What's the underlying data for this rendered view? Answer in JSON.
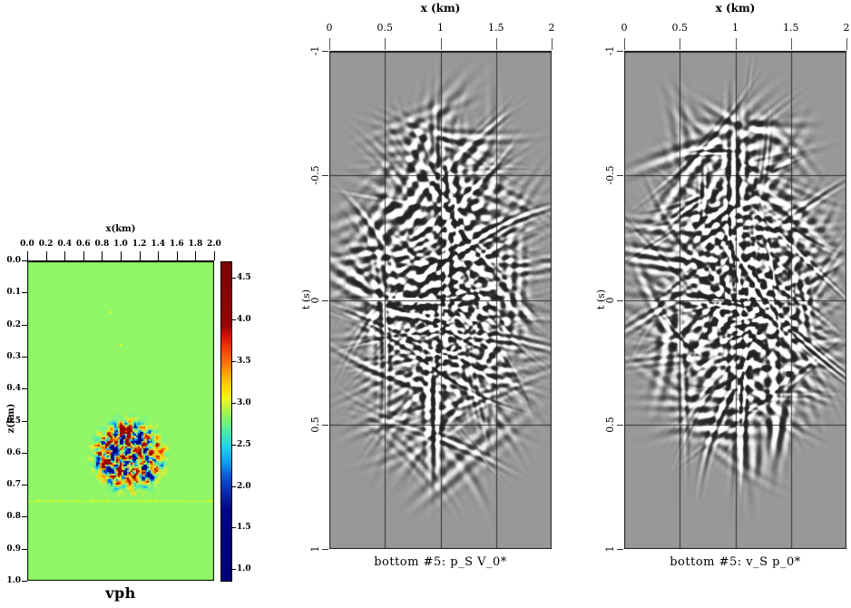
{
  "chart_data": [
    {
      "type": "heatmap",
      "role": "velocity-model",
      "caption": "vph",
      "xlabel": "x(km)",
      "zlabel": "z(km)",
      "xlim": [
        0,
        2
      ],
      "zlim": [
        0,
        1
      ],
      "x_tick_values": [
        0,
        0.2,
        0.4,
        0.6,
        0.8,
        1.0,
        1.2,
        1.4,
        1.6,
        1.8,
        2.0
      ],
      "x_tick_labels": [
        "0.0",
        "0.2",
        "0.4",
        "0.6",
        "0.8",
        "1.0",
        "1.2",
        "1.4",
        "1.6",
        "1.8",
        "2.0"
      ],
      "z_tick_values": [
        0,
        0.1,
        0.2,
        0.3,
        0.4,
        0.5,
        0.6,
        0.7,
        0.8,
        0.9,
        1.0
      ],
      "z_tick_labels": [
        "0.0",
        "0.1",
        "0.2",
        "0.3",
        "0.4",
        "0.5",
        "0.6",
        "0.7",
        "0.8",
        "0.9",
        "1.0"
      ],
      "background_velocity_color": "#91f766",
      "interface": {
        "z_km": 0.75,
        "color": "#ffff00"
      },
      "scatter_patch": {
        "x_km": [
          0.64,
          1.5
        ],
        "z_km": [
          0.48,
          0.73
        ],
        "description": "random velocity perturbation speckle patch (jet colors on green background)"
      },
      "markers_km": [
        [
          0.88,
          0.16
        ],
        [
          0.99,
          0.26
        ]
      ],
      "palette_anchors": [
        [
          0.0,
          "#000082"
        ],
        [
          0.14,
          "#0840dc"
        ],
        [
          0.28,
          "#18c8f0"
        ],
        [
          0.4,
          "#6ef096"
        ],
        [
          0.5,
          "#91f766"
        ],
        [
          0.6,
          "#def03a"
        ],
        [
          0.72,
          "#ffc400"
        ],
        [
          0.86,
          "#ff4000"
        ],
        [
          1.0,
          "#940000"
        ]
      ],
      "colorbar": {
        "vmin": 0.85,
        "vmax": 4.7,
        "tick_values": [
          4.5,
          4.0,
          3.5,
          3.0,
          2.5,
          2.0,
          1.5,
          1.0
        ],
        "tick_labels": [
          "4.5",
          "4.0",
          "3.5",
          "3.0",
          "2.5",
          "2.0",
          "1.5",
          "1.0"
        ],
        "gradient": [
          [
            "0%",
            "#7c0000"
          ],
          [
            "20%",
            "#980000"
          ],
          [
            "23%",
            "#cf1000"
          ],
          [
            "27%",
            "#f53c00"
          ],
          [
            "31%",
            "#ff6c00"
          ],
          [
            "35%",
            "#ffa300"
          ],
          [
            "39%",
            "#ffd400"
          ],
          [
            "43%",
            "#eef61e"
          ],
          [
            "47%",
            "#a6f64e"
          ],
          [
            "50%",
            "#74f573"
          ],
          [
            "54%",
            "#3fe9b5"
          ],
          [
            "58%",
            "#1ed2ec"
          ],
          [
            "63%",
            "#0b9cf2"
          ],
          [
            "67%",
            "#0b59dc"
          ],
          [
            "72%",
            "#0a2bb0"
          ],
          [
            "78%",
            "#000487"
          ],
          [
            "100%",
            "#000078"
          ]
        ]
      }
    },
    {
      "type": "heatmap",
      "role": "wavefield-gather",
      "caption": "bottom #5: p_S V_0*",
      "xlabel": "x (km)",
      "ylabel": "t (s)",
      "xlim": [
        0,
        2
      ],
      "tlim": [
        -1,
        1
      ],
      "x_tick_values": [
        0,
        0.5,
        1,
        1.5,
        2
      ],
      "x_tick_labels": [
        "0",
        "0.5",
        "1",
        "1.5",
        "2"
      ],
      "t_tick_values": [
        -1,
        -0.5,
        0,
        0.5,
        1
      ],
      "t_tick_labels": [
        "-1",
        "-0.5",
        "0",
        "0.5",
        "1"
      ],
      "grid_x": [
        0.5,
        1,
        1.5
      ],
      "grid_t": [
        -0.5,
        0,
        0.5
      ],
      "palette": "grayscale",
      "background_gray": "#989898",
      "grid_color": "#1e1e1e",
      "content": "band-limited crossing dipping seismic events, energy concentrated in elliptical region centered near x=1 km, t=0 s"
    },
    {
      "type": "heatmap",
      "role": "wavefield-gather",
      "caption": "bottom #5: v_S p_0*",
      "xlabel": "x (km)",
      "ylabel": "t (s)",
      "xlim": [
        0,
        2
      ],
      "tlim": [
        -1,
        1
      ],
      "x_tick_values": [
        0,
        0.5,
        1,
        1.5,
        2
      ],
      "x_tick_labels": [
        "0",
        "0.5",
        "1",
        "1.5",
        "2"
      ],
      "t_tick_values": [
        -1,
        -0.5,
        0,
        0.5,
        1
      ],
      "t_tick_labels": [
        "-1",
        "-0.5",
        "0",
        "0.5",
        "1"
      ],
      "grid_x": [
        0.5,
        1,
        1.5
      ],
      "grid_t": [
        -0.5,
        0,
        0.5
      ],
      "palette": "grayscale",
      "background_gray": "#989898",
      "grid_color": "#1e1e1e",
      "content": "band-limited crossing dipping seismic events with strong vertical spine near x=1 km"
    }
  ]
}
